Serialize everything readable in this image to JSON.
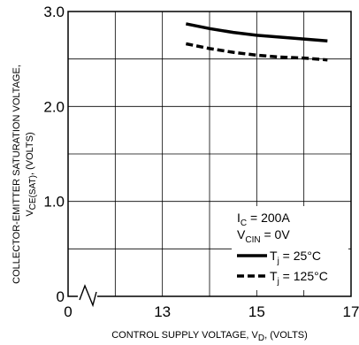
{
  "chart_data": {
    "type": "line",
    "title": "",
    "xlabel": "CONTROL SUPPLY VOLTAGE, V",
    "xlabel_sub": "D",
    "xlabel_tail": ", (VOLTS)",
    "ylabel_line1": "COLLECTOR-EMITTER SATURATION VOLTAGE,",
    "ylabel_line2_main": "V",
    "ylabel_line2_sub": "CE(SAT)",
    "ylabel_line2_tail": ", (VOLTS)",
    "x_ticks": [
      "0",
      "13",
      "15",
      "17"
    ],
    "y_ticks": [
      "0",
      "1.0",
      "2.0",
      "3.0"
    ],
    "xlim": [
      11,
      17
    ],
    "ylim": [
      0,
      3.0
    ],
    "x_axis_break": true,
    "grid": true,
    "legend_position": "bottom-right",
    "conditions": [
      {
        "main": "I",
        "sub": "C",
        "tail": " = 200A"
      },
      {
        "main": "V",
        "sub": "CIN",
        "tail": " = 0V"
      }
    ],
    "series": [
      {
        "name_main": "T",
        "name_sub": "j",
        "name_tail": " = 25°C",
        "style": "solid",
        "color": "#000000",
        "x": [
          13.5,
          14.0,
          14.5,
          15.0,
          15.5,
          16.0,
          16.5
        ],
        "y": [
          2.87,
          2.82,
          2.78,
          2.75,
          2.73,
          2.71,
          2.69
        ]
      },
      {
        "name_main": "T",
        "name_sub": "j",
        "name_tail": " = 125°C",
        "style": "dashed",
        "color": "#000000",
        "x": [
          13.5,
          14.0,
          14.5,
          15.0,
          15.5,
          16.0,
          16.5
        ],
        "y": [
          2.66,
          2.61,
          2.57,
          2.54,
          2.52,
          2.51,
          2.49
        ]
      }
    ]
  }
}
